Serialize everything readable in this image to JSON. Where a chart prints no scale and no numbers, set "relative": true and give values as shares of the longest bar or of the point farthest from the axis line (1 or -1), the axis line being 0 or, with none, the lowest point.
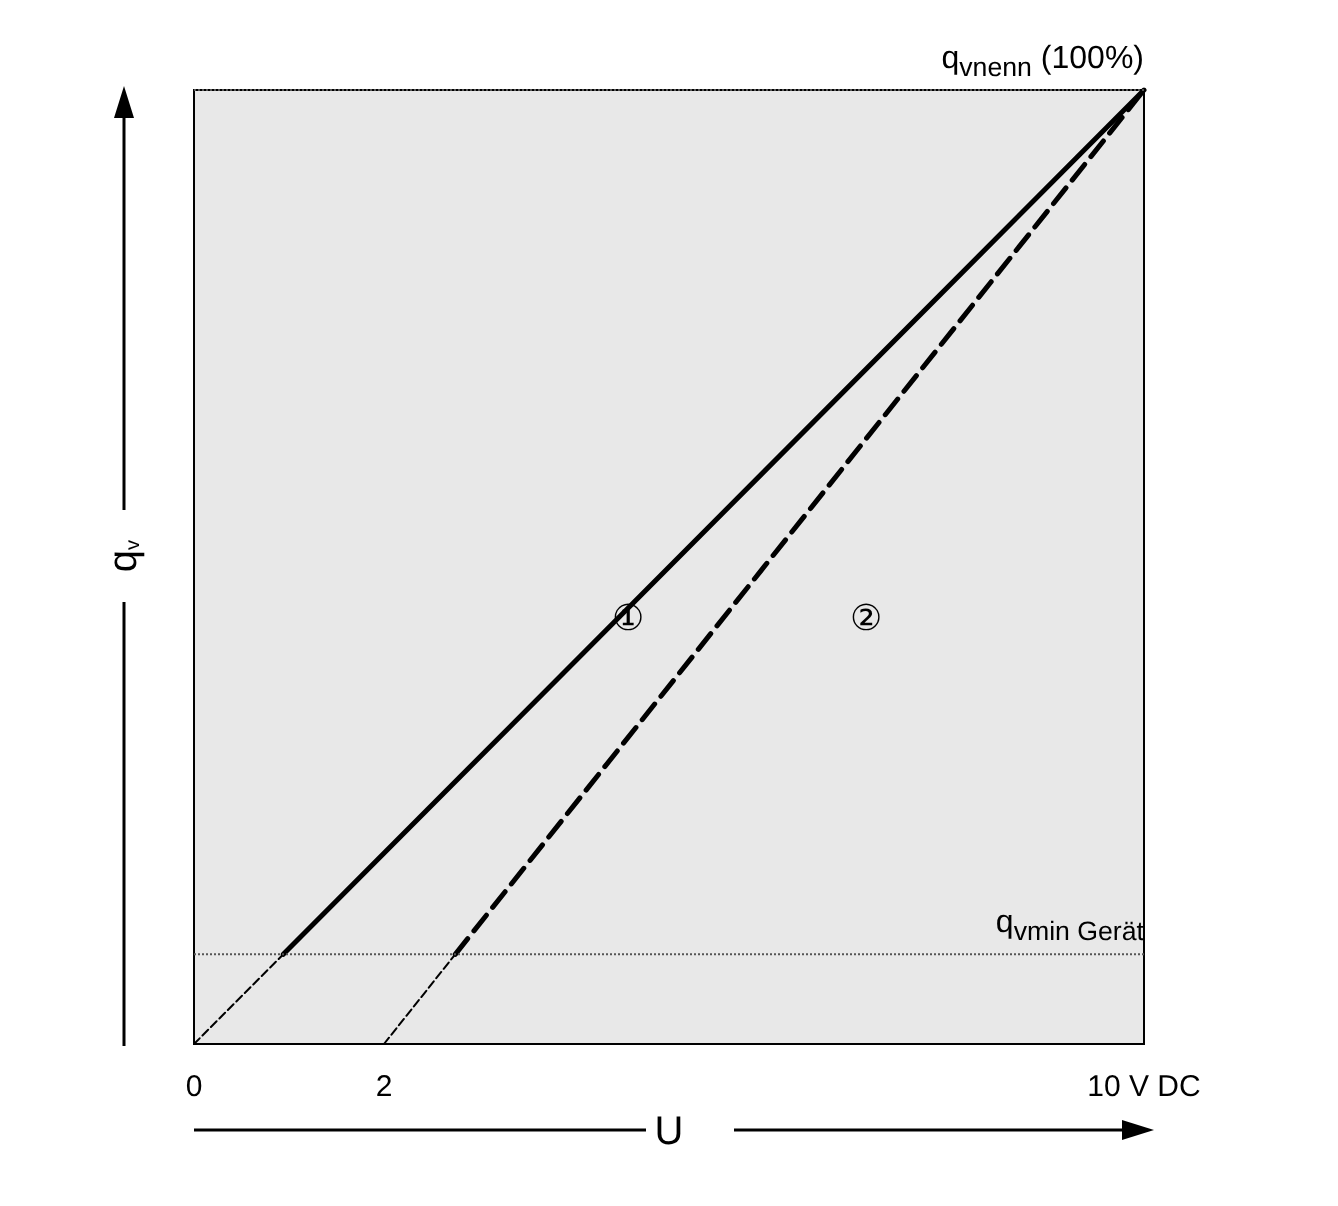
{
  "chart_data": {
    "type": "line",
    "relative": true,
    "xlabel": "U",
    "ylabel": "q$_{v}$",
    "xlim": [
      0,
      10
    ],
    "xticks": [
      0,
      2,
      {
        "value": 10,
        "label": "10 V DC"
      }
    ],
    "grid": false,
    "legend": false,
    "marker": "none",
    "series": [
      {
        "name": "①",
        "color": "#000000",
        "line_style": "solid",
        "x": [
          0.94,
          10
        ],
        "values": [
          0.094,
          1
        ]
      },
      {
        "color": "#000000",
        "line_style": "dashed",
        "x": [
          0,
          0.94
        ],
        "values": [
          0,
          0.094
        ]
      },
      {
        "name": "②",
        "color": "#000000",
        "line_style": "dashed",
        "x": [
          2.75,
          10
        ],
        "values": [
          0.094,
          1
        ]
      },
      {
        "color": "#000000",
        "line_style": "dashed",
        "x": [
          2,
          2.75
        ],
        "values": [
          0,
          0.094
        ]
      }
    ],
    "ref_lines": [
      {
        "axis": "y",
        "value": 1,
        "label": "q$_{vnenn}$ (100%)",
        "color": "#555555",
        "line_style": "dotted"
      },
      {
        "axis": "y",
        "value": 0.094,
        "label": "q$_{vmin Gerät}$",
        "color": "#555555",
        "line_style": "dotted"
      }
    ]
  }
}
